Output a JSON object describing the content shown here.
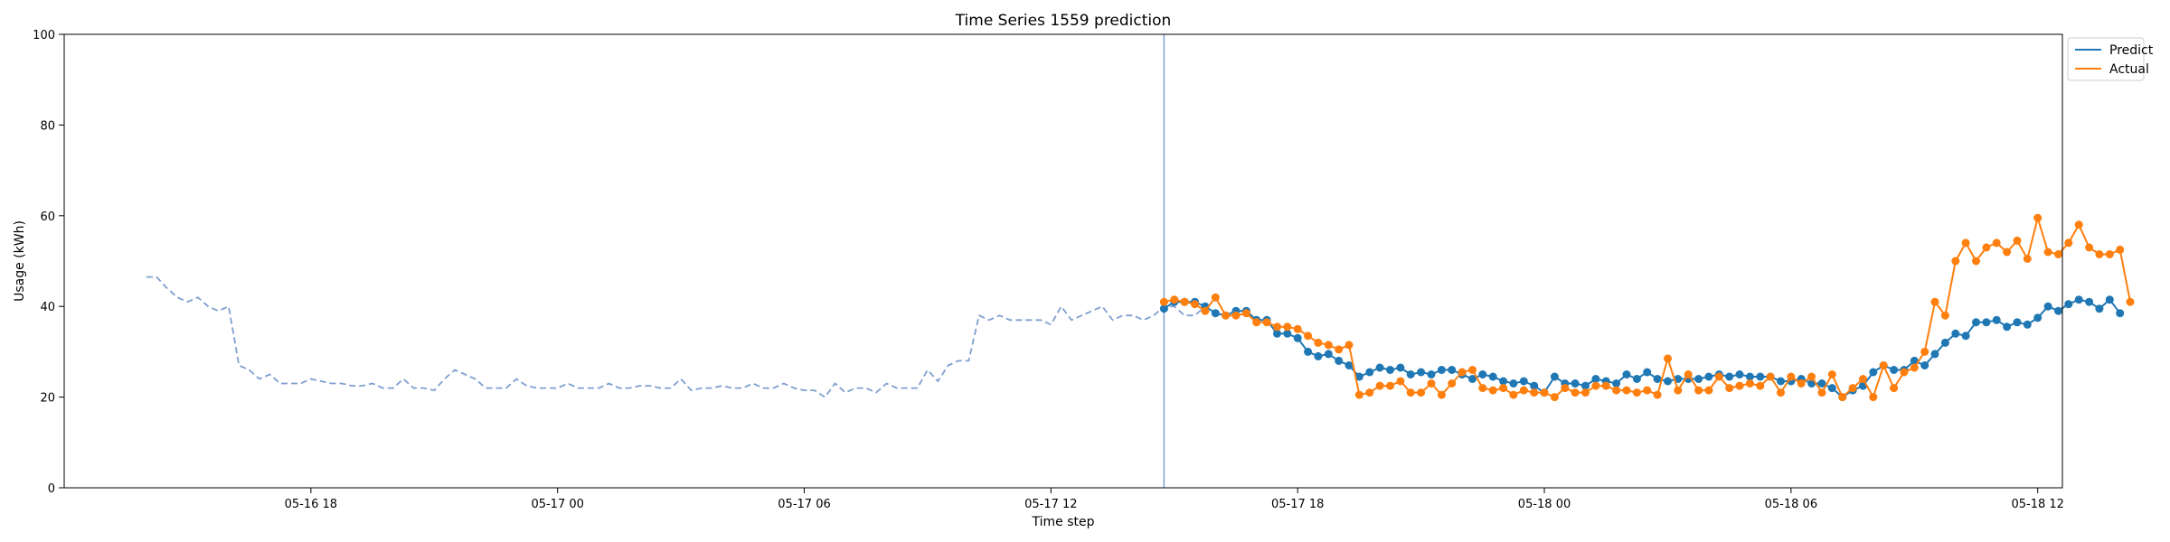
{
  "chart_data": {
    "type": "line",
    "title": "Time Series 1559 prediction",
    "xlabel": "Time step",
    "ylabel": "Usage (kWh)",
    "ylim": [
      0,
      100
    ],
    "yticks": [
      0,
      20,
      40,
      60,
      80,
      100
    ],
    "x_unit": "hours from 05-16 14:00",
    "xlim": [
      -2,
      46.6
    ],
    "xticks": [
      {
        "label": "05-16 18",
        "x": 4
      },
      {
        "label": "05-17 00",
        "x": 10
      },
      {
        "label": "05-17 06",
        "x": 16
      },
      {
        "label": "05-17 12",
        "x": 22
      },
      {
        "label": "05-17 18",
        "x": 28
      },
      {
        "label": "05-18 00",
        "x": 34
      },
      {
        "label": "05-18 06",
        "x": 40
      },
      {
        "label": "05-18 12",
        "x": 46
      }
    ],
    "forecast_start_x": 24.75,
    "legend": {
      "position": "upper right outside",
      "entries": [
        {
          "label": "Predict",
          "color": "#1f77b4"
        },
        {
          "label": "Actual",
          "color": "#ff7f0e"
        }
      ]
    },
    "history": {
      "x_start": 0,
      "step": 0.25,
      "color": "#7f9fcf",
      "style": "dashed",
      "values": [
        46.5,
        46.5,
        44,
        42,
        41,
        42,
        40,
        39,
        40,
        27,
        26,
        24,
        25,
        23,
        23,
        23,
        24,
        23.5,
        23,
        23,
        22.5,
        22.5,
        23,
        22,
        22,
        24,
        22,
        22,
        21.5,
        24,
        26,
        25,
        24,
        22,
        22,
        22,
        24,
        22.5,
        22,
        22,
        22,
        23,
        22,
        22,
        22,
        23,
        22,
        22,
        22.5,
        22.5,
        22,
        22,
        24,
        21.5,
        22,
        22,
        22.5,
        22,
        22,
        23,
        22,
        22,
        23,
        22,
        21.5,
        21.5,
        20,
        23,
        21,
        22,
        22,
        21,
        23,
        22,
        22,
        22,
        26,
        23.5,
        27,
        28,
        28,
        38,
        37,
        38,
        37,
        37,
        37,
        37,
        36,
        40,
        37,
        38,
        39,
        40,
        37,
        38,
        38,
        37,
        38,
        40,
        40,
        38,
        38,
        40
      ]
    },
    "series": [
      {
        "name": "Predict",
        "color": "#1f77b4",
        "x_start": 24.75,
        "step": 0.25,
        "values": [
          39.5,
          41,
          41,
          41,
          40,
          38.5,
          38,
          39,
          39,
          37,
          37,
          34,
          34,
          33,
          30,
          29,
          29.5,
          28,
          27,
          24.5,
          25.5,
          26.5,
          26,
          26.5,
          25,
          25.5,
          25,
          26,
          26,
          25,
          24,
          25,
          24.5,
          23.5,
          23,
          23.5,
          22.5,
          21,
          24.5,
          23,
          23,
          22.5,
          24,
          23.5,
          23,
          25,
          24,
          25.5,
          24,
          23.5,
          24,
          24,
          24,
          24.5,
          25,
          24.5,
          25,
          24.5,
          24.5,
          24.5,
          23.5,
          23.5,
          24,
          23,
          23,
          22,
          20,
          21.5,
          22.5,
          25.5,
          27,
          26,
          26,
          28,
          27,
          29.5,
          32,
          34,
          33.5,
          36.5,
          36.5,
          37,
          35.5,
          36.5,
          36,
          37.5,
          40,
          39,
          40.5,
          41.5,
          41,
          39.5,
          41.5,
          38.5
        ]
      },
      {
        "name": "Actual",
        "color": "#ff7f0e",
        "x_start": 24.75,
        "step": 0.25,
        "values": [
          41,
          41.5,
          41,
          40.5,
          39,
          42,
          38,
          38,
          38.5,
          36.5,
          36.5,
          35.5,
          35.5,
          35,
          33.5,
          32,
          31.5,
          30.5,
          31.5,
          20.5,
          21,
          22.5,
          22.5,
          23.5,
          21,
          21,
          23,
          20.5,
          23,
          25.5,
          26,
          22,
          21.5,
          22,
          20.5,
          21.5,
          21,
          21,
          20,
          22,
          21,
          21,
          22.5,
          22.5,
          21.5,
          21.5,
          21,
          21.5,
          20.5,
          28.5,
          21.5,
          25,
          21.5,
          21.5,
          24.5,
          22,
          22.5,
          23,
          22.5,
          24.5,
          21,
          24.5,
          23,
          24.5,
          21,
          25,
          20,
          22,
          24,
          20,
          27,
          22,
          25.5,
          26.5,
          30,
          41,
          38,
          50,
          54,
          50,
          53,
          54,
          52,
          54.5,
          50.5,
          59.5,
          52,
          51.5,
          54,
          58,
          53,
          51.5,
          51.5,
          52.5,
          41
        ]
      }
    ]
  }
}
